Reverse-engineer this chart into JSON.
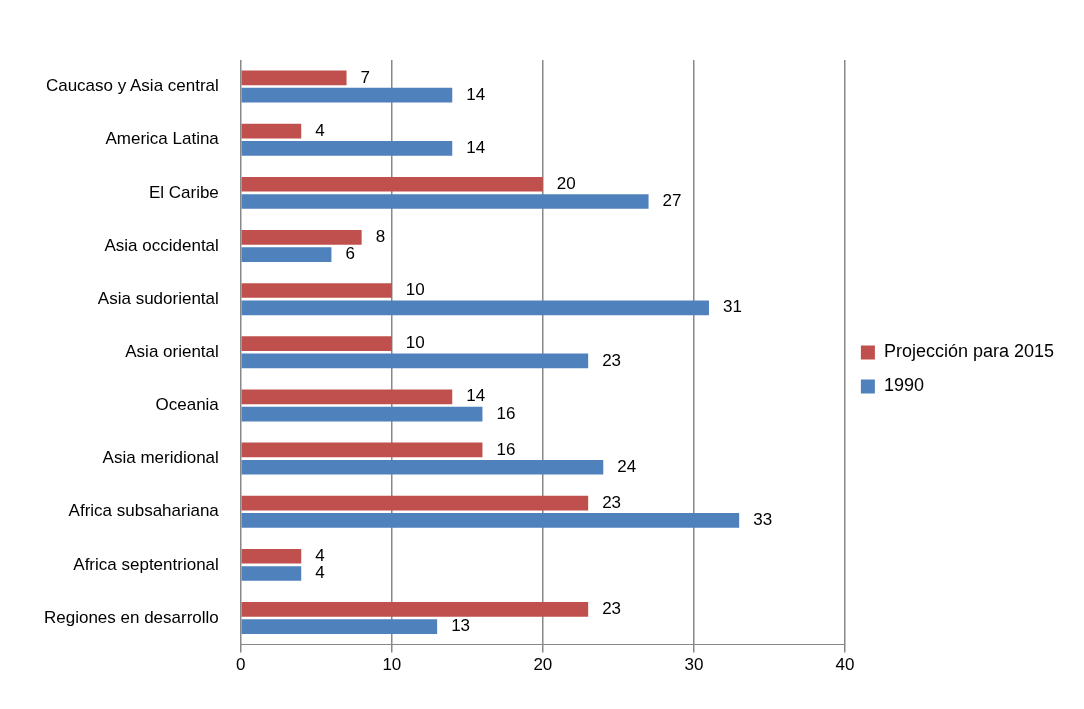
{
  "chart_data": {
    "type": "bar",
    "orientation": "horizontal",
    "categories": [
      "Caucaso y Asia central",
      "America Latina",
      "El Caribe",
      "Asia occidental",
      "Asia sudoriental",
      "Asia oriental",
      "Oceania",
      "Asia meridional",
      "Africa subsahariana",
      "Africa septentrional",
      "Regiones en desarrollo"
    ],
    "series": [
      {
        "name": "Projección para 2015",
        "color": "#c0504d",
        "values": [
          7,
          4,
          20,
          8,
          10,
          10,
          14,
          16,
          23,
          4,
          23
        ]
      },
      {
        "name": "1990",
        "color": "#4f81bd",
        "values": [
          14,
          14,
          27,
          6,
          31,
          23,
          16,
          24,
          33,
          4,
          13
        ]
      }
    ],
    "xlim": [
      0,
      40
    ],
    "xticks": [
      0,
      10,
      20,
      30,
      40
    ],
    "grid": "x",
    "legend": "right",
    "data_labels": true
  }
}
